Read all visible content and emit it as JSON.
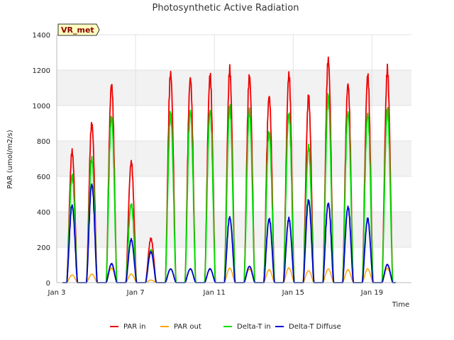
{
  "chart_data": {
    "type": "line",
    "title": "Photosynthetic Active Radiation",
    "xlabel": "Time",
    "ylabel": "PAR (umol/m2/s)",
    "badge": "VR_met",
    "ylim": [
      0,
      1400
    ],
    "xlim": [
      0,
      18
    ],
    "yticks": [
      0,
      200,
      400,
      600,
      800,
      1000,
      1200,
      1400
    ],
    "xticks": [
      {
        "value": 0,
        "label": "Jan 3"
      },
      {
        "value": 4,
        "label": "Jan 7"
      },
      {
        "value": 8,
        "label": "Jan 11"
      },
      {
        "value": 12,
        "label": "Jan 15"
      },
      {
        "value": 16,
        "label": "Jan 19"
      }
    ],
    "grid": true,
    "legend": "bottom",
    "day_centers": [
      0.78,
      1.78,
      2.78,
      3.78,
      4.78,
      5.78,
      6.78,
      7.78,
      8.78,
      9.78,
      10.78,
      11.78,
      12.78,
      13.78,
      14.78,
      15.78,
      16.78
    ],
    "series": [
      {
        "name": "PAR in",
        "color": "#ee0000",
        "daily_peaks": [
          760,
          930,
          1160,
          700,
          255,
          1220,
          1195,
          1205,
          1235,
          1205,
          1090,
          1210,
          1075,
          1300,
          1160,
          1205,
          1235
        ]
      },
      {
        "name": "PAR out",
        "color": "#ffa500",
        "daily_peaks": [
          45,
          50,
          85,
          50,
          15,
          80,
          80,
          80,
          85,
          80,
          75,
          85,
          70,
          80,
          75,
          80,
          85
        ]
      },
      {
        "name": "Delta-T in",
        "color": "#00dd00",
        "daily_peaks": [
          620,
          720,
          970,
          460,
          190,
          980,
          1000,
          1000,
          1020,
          995,
          880,
          990,
          790,
          1080,
          990,
          985,
          1005
        ]
      },
      {
        "name": "Delta-T Diffuse",
        "color": "#0000cc",
        "daily_peaks": [
          450,
          575,
          110,
          250,
          180,
          80,
          80,
          80,
          380,
          95,
          370,
          370,
          480,
          465,
          440,
          370,
          105
        ]
      }
    ]
  }
}
